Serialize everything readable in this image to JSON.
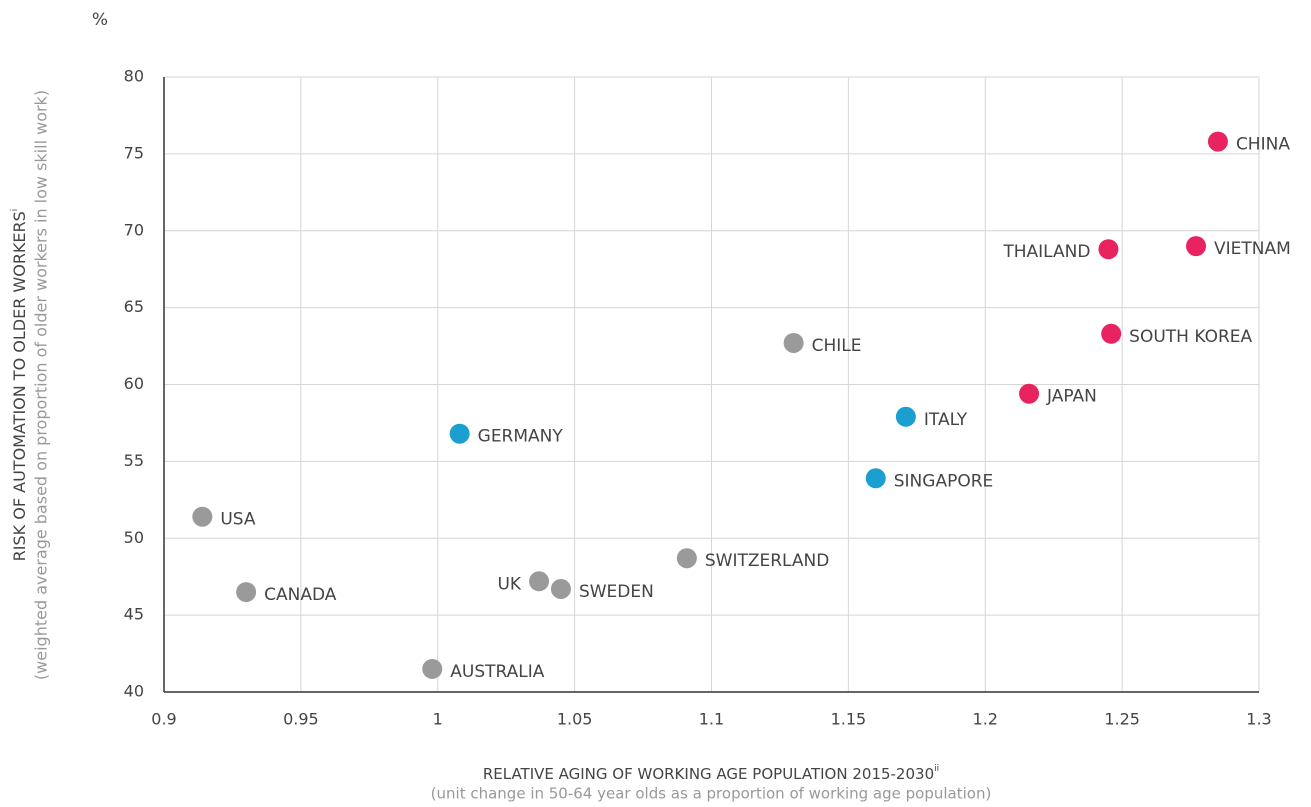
{
  "chart_data": {
    "type": "scatter",
    "y_unit": "%",
    "y_label": "RISK OF AUTOMATION TO OLDER WORKERS",
    "y_label_note": "i",
    "y_sublabel": "(weighted average based on proportion of older workers in low skill work)",
    "x_label": "RELATIVE AGING OF WORKING AGE POPULATION 2015-2030",
    "x_label_note": "ii",
    "x_sublabel": "(unit change in 50-64 year olds as a proportion of working age population)",
    "xlim": [
      0.9,
      1.3
    ],
    "xticks": [
      0.9,
      0.95,
      1,
      1.05,
      1.1,
      1.15,
      1.2,
      1.25,
      1.3
    ],
    "ylim": [
      40,
      80
    ],
    "yticks": [
      40,
      45,
      50,
      55,
      60,
      65,
      70,
      75,
      80
    ],
    "grid": true,
    "points": [
      {
        "label": "CHINA",
        "x": 1.285,
        "y": 75.8,
        "color": "#e8235f",
        "label_side": "right"
      },
      {
        "label": "VIETNAM",
        "x": 1.277,
        "y": 69.0,
        "color": "#e8235f",
        "label_side": "right"
      },
      {
        "label": "THAILAND",
        "x": 1.245,
        "y": 68.8,
        "color": "#e8235f",
        "label_side": "left"
      },
      {
        "label": "SOUTH KOREA",
        "x": 1.246,
        "y": 63.3,
        "color": "#e8235f",
        "label_side": "right"
      },
      {
        "label": "JAPAN",
        "x": 1.216,
        "y": 59.4,
        "color": "#e8235f",
        "label_side": "right"
      },
      {
        "label": "ITALY",
        "x": 1.171,
        "y": 57.9,
        "color": "#1a9fd0",
        "label_side": "right"
      },
      {
        "label": "SINGAPORE",
        "x": 1.16,
        "y": 53.9,
        "color": "#1a9fd0",
        "label_side": "right"
      },
      {
        "label": "GERMANY",
        "x": 1.008,
        "y": 56.8,
        "color": "#1a9fd0",
        "label_side": "right"
      },
      {
        "label": "CHILE",
        "x": 1.13,
        "y": 62.7,
        "color": "#9a9a9a",
        "label_side": "right"
      },
      {
        "label": "USA",
        "x": 0.914,
        "y": 51.4,
        "color": "#9a9a9a",
        "label_side": "right"
      },
      {
        "label": "CANADA",
        "x": 0.93,
        "y": 46.5,
        "color": "#9a9a9a",
        "label_side": "right"
      },
      {
        "label": "UK",
        "x": 1.037,
        "y": 47.2,
        "color": "#9a9a9a",
        "label_side": "left"
      },
      {
        "label": "SWEDEN",
        "x": 1.045,
        "y": 46.7,
        "color": "#9a9a9a",
        "label_side": "right"
      },
      {
        "label": "SWITZERLAND",
        "x": 1.091,
        "y": 48.7,
        "color": "#9a9a9a",
        "label_side": "right"
      },
      {
        "label": "AUSTRALIA",
        "x": 0.998,
        "y": 41.5,
        "color": "#9a9a9a",
        "label_side": "right"
      }
    ]
  }
}
